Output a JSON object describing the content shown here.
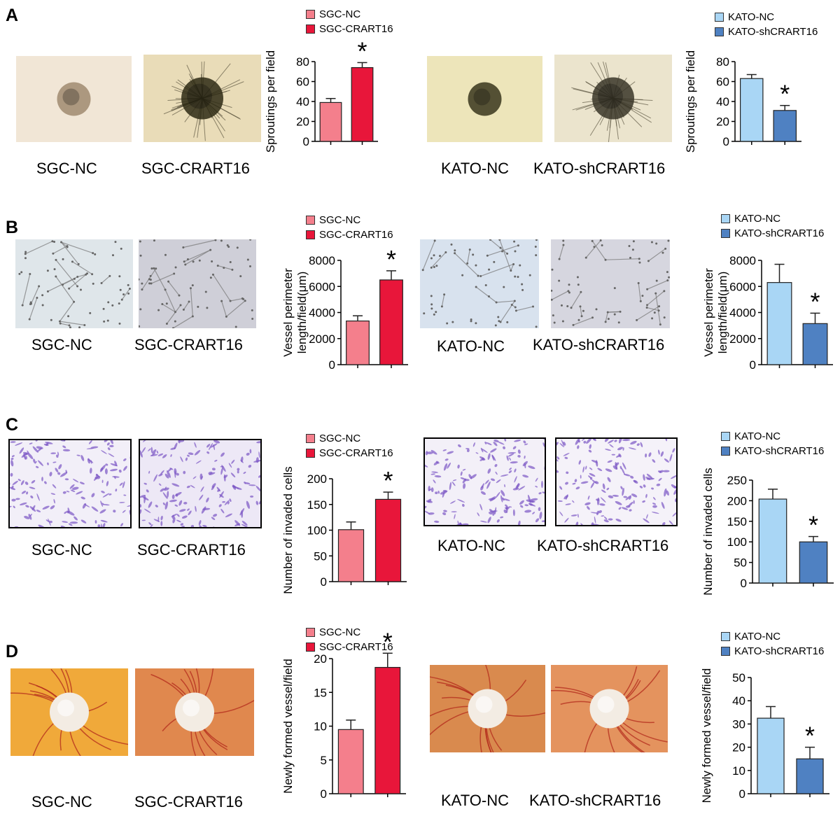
{
  "panels": [
    {
      "letter": "A",
      "images": [
        {
          "label": "SGC-NC",
          "kind": "spheroid",
          "color": "#f1e6d6",
          "core": "#a08a70",
          "burst": false
        },
        {
          "label": "SGC-CRART16",
          "kind": "spheroid",
          "color": "#e9dcb8",
          "core": "#2e2a14",
          "burst": true
        },
        {
          "label": "KATO-NC",
          "kind": "spheroid",
          "color": "#ede5ba",
          "core": "#38361c",
          "burst": false
        },
        {
          "label": "KATO-shCRART16",
          "kind": "spheroid",
          "color": "#ebe4cd",
          "core": "#3a3628",
          "burst": true
        }
      ]
    },
    {
      "letter": "B",
      "images": [
        {
          "label": "SGC-NC",
          "kind": "network",
          "color": "#dfe6ea"
        },
        {
          "label": "SGC-CRART16",
          "kind": "network",
          "color": "#cfcfd8"
        },
        {
          "label": "KATO-NC",
          "kind": "network",
          "color": "#d8e2ee"
        },
        {
          "label": "KATO-shCRART16",
          "kind": "network",
          "color": "#d6d6df"
        }
      ]
    },
    {
      "letter": "C",
      "images": [
        {
          "label": "SGC-NC",
          "kind": "cells",
          "color": "#f2eff8"
        },
        {
          "label": "SGC-CRART16",
          "kind": "cells",
          "color": "#ede8f6"
        },
        {
          "label": "KATO-NC",
          "kind": "cells",
          "color": "#f3f0f8"
        },
        {
          "label": "KATO-shCRART16",
          "kind": "cells",
          "color": "#f5f2f9"
        }
      ]
    },
    {
      "letter": "D",
      "images": [
        {
          "label": "SGC-NC",
          "kind": "cam",
          "color": "#f0a93a"
        },
        {
          "label": "SGC-CRART16",
          "kind": "cam",
          "color": "#e0884e"
        },
        {
          "label": "KATO-NC",
          "kind": "cam",
          "color": "#d98a4e"
        },
        {
          "label": "KATO-shCRART16",
          "kind": "cam",
          "color": "#e4935e"
        }
      ]
    }
  ],
  "chart_data": [
    {
      "type": "bar",
      "panel": "A",
      "ylabel": "Sproutings per field",
      "ylim": [
        0,
        80
      ],
      "ticks": [
        0,
        20,
        40,
        60,
        80
      ],
      "series": [
        {
          "name": "SGC-NC",
          "value": 39,
          "error": 4,
          "color": "#f47f8c"
        },
        {
          "name": "SGC-CRART16",
          "value": 74,
          "error": 5,
          "color": "#e8163a"
        }
      ],
      "significance": "*"
    },
    {
      "type": "bar",
      "panel": "A",
      "ylabel": "Sproutings per field",
      "ylim": [
        0,
        80
      ],
      "ticks": [
        0,
        20,
        40,
        60,
        80
      ],
      "series": [
        {
          "name": "KATO-NC",
          "value": 63,
          "error": 4,
          "color": "#a9d6f5"
        },
        {
          "name": "KATO-shCRART16",
          "value": 31,
          "error": 5,
          "color": "#4f81c2"
        }
      ],
      "significance": "*"
    },
    {
      "type": "bar",
      "panel": "B",
      "ylabel": "Vessel perimeter length/field(μm)",
      "ylim": [
        0,
        8000
      ],
      "ticks": [
        0,
        2000,
        4000,
        6000,
        8000
      ],
      "series": [
        {
          "name": "SGC-NC",
          "value": 3350,
          "error": 400,
          "color": "#f47f8c"
        },
        {
          "name": "SGC-CRART16",
          "value": 6500,
          "error": 700,
          "color": "#e8163a"
        }
      ],
      "significance": "*"
    },
    {
      "type": "bar",
      "panel": "B",
      "ylabel": "Vessel perimeter length/field(μm)",
      "ylim": [
        0,
        8000
      ],
      "ticks": [
        0,
        2000,
        4000,
        6000,
        8000
      ],
      "series": [
        {
          "name": "KATO-NC",
          "value": 6300,
          "error": 1400,
          "color": "#a9d6f5"
        },
        {
          "name": "KATO-shCRART16",
          "value": 3150,
          "error": 800,
          "color": "#4f81c2"
        }
      ],
      "significance": "*"
    },
    {
      "type": "bar",
      "panel": "C",
      "ylabel": "Number of invaded cells",
      "ylim": [
        0,
        200
      ],
      "ticks": [
        0,
        50,
        100,
        150,
        200
      ],
      "series": [
        {
          "name": "SGC-NC",
          "value": 101,
          "error": 15,
          "color": "#f47f8c"
        },
        {
          "name": "SGC-CRART16",
          "value": 160,
          "error": 14,
          "color": "#e8163a"
        }
      ],
      "significance": "*"
    },
    {
      "type": "bar",
      "panel": "C",
      "ylabel": "Number of invaded cells",
      "ylim": [
        0,
        250
      ],
      "ticks": [
        0,
        50,
        100,
        150,
        200,
        250
      ],
      "series": [
        {
          "name": "KATO-NC",
          "value": 204,
          "error": 24,
          "color": "#a9d6f5"
        },
        {
          "name": "KATO-shCRART16",
          "value": 100,
          "error": 13,
          "color": "#4f81c2"
        }
      ],
      "significance": "*"
    },
    {
      "type": "bar",
      "panel": "D",
      "ylabel": "Newly formed vessel/field",
      "ylim": [
        0,
        20
      ],
      "ticks": [
        0,
        5,
        10,
        15,
        20
      ],
      "series": [
        {
          "name": "SGC-NC",
          "value": 9.5,
          "error": 1.4,
          "color": "#f47f8c"
        },
        {
          "name": "SGC-CRART16",
          "value": 18.7,
          "error": 2.1,
          "color": "#e8163a"
        }
      ],
      "significance": "*"
    },
    {
      "type": "bar",
      "panel": "D",
      "ylabel": "Newly formed vessel/field",
      "ylim": [
        0,
        50
      ],
      "ticks": [
        0,
        10,
        20,
        30,
        40,
        50
      ],
      "series": [
        {
          "name": "KATO-NC",
          "value": 32.5,
          "error": 5,
          "color": "#a9d6f5"
        },
        {
          "name": "KATO-shCRART16",
          "value": 15,
          "error": 5,
          "color": "#4f81c2"
        }
      ],
      "significance": "*"
    }
  ]
}
